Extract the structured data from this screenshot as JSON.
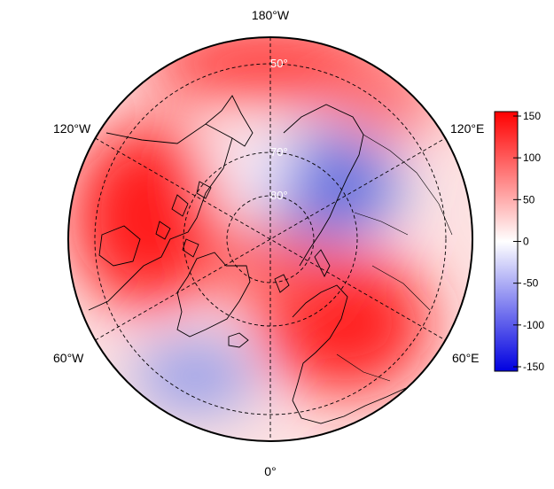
{
  "map": {
    "projection": "north-polar-stereographic",
    "longitude_labels": {
      "top": "180°W",
      "upper_left": "120°W",
      "upper_right": "120°E",
      "lower_left": "60°W",
      "lower_right": "60°E",
      "bottom": "0°"
    },
    "latitude_labels": [
      "50°",
      "70°",
      "80°"
    ],
    "graticule": "dashed",
    "coastlines": true,
    "country_borders": true
  },
  "colorbar": {
    "colormap": "blue-white-red",
    "min": -150,
    "max": 150,
    "ticks": [
      "150",
      "100",
      "50",
      "0",
      "-50",
      "-100",
      "-150"
    ],
    "low_color": "#0000e0",
    "mid_color": "#ffffff",
    "high_color": "#ff0000"
  },
  "field_features": [
    {
      "sign": "positive",
      "region": "North America / Canadian Arctic",
      "peak": 150
    },
    {
      "sign": "positive",
      "region": "Scandinavia / Barents Sea",
      "peak": 140
    },
    {
      "sign": "positive",
      "region": "North Pacific / Bering",
      "peak": 120
    },
    {
      "sign": "negative",
      "region": "East Siberia / Arctic Ocean",
      "peak": -70
    },
    {
      "sign": "negative",
      "region": "North Atlantic south of Greenland",
      "peak": -50
    }
  ]
}
